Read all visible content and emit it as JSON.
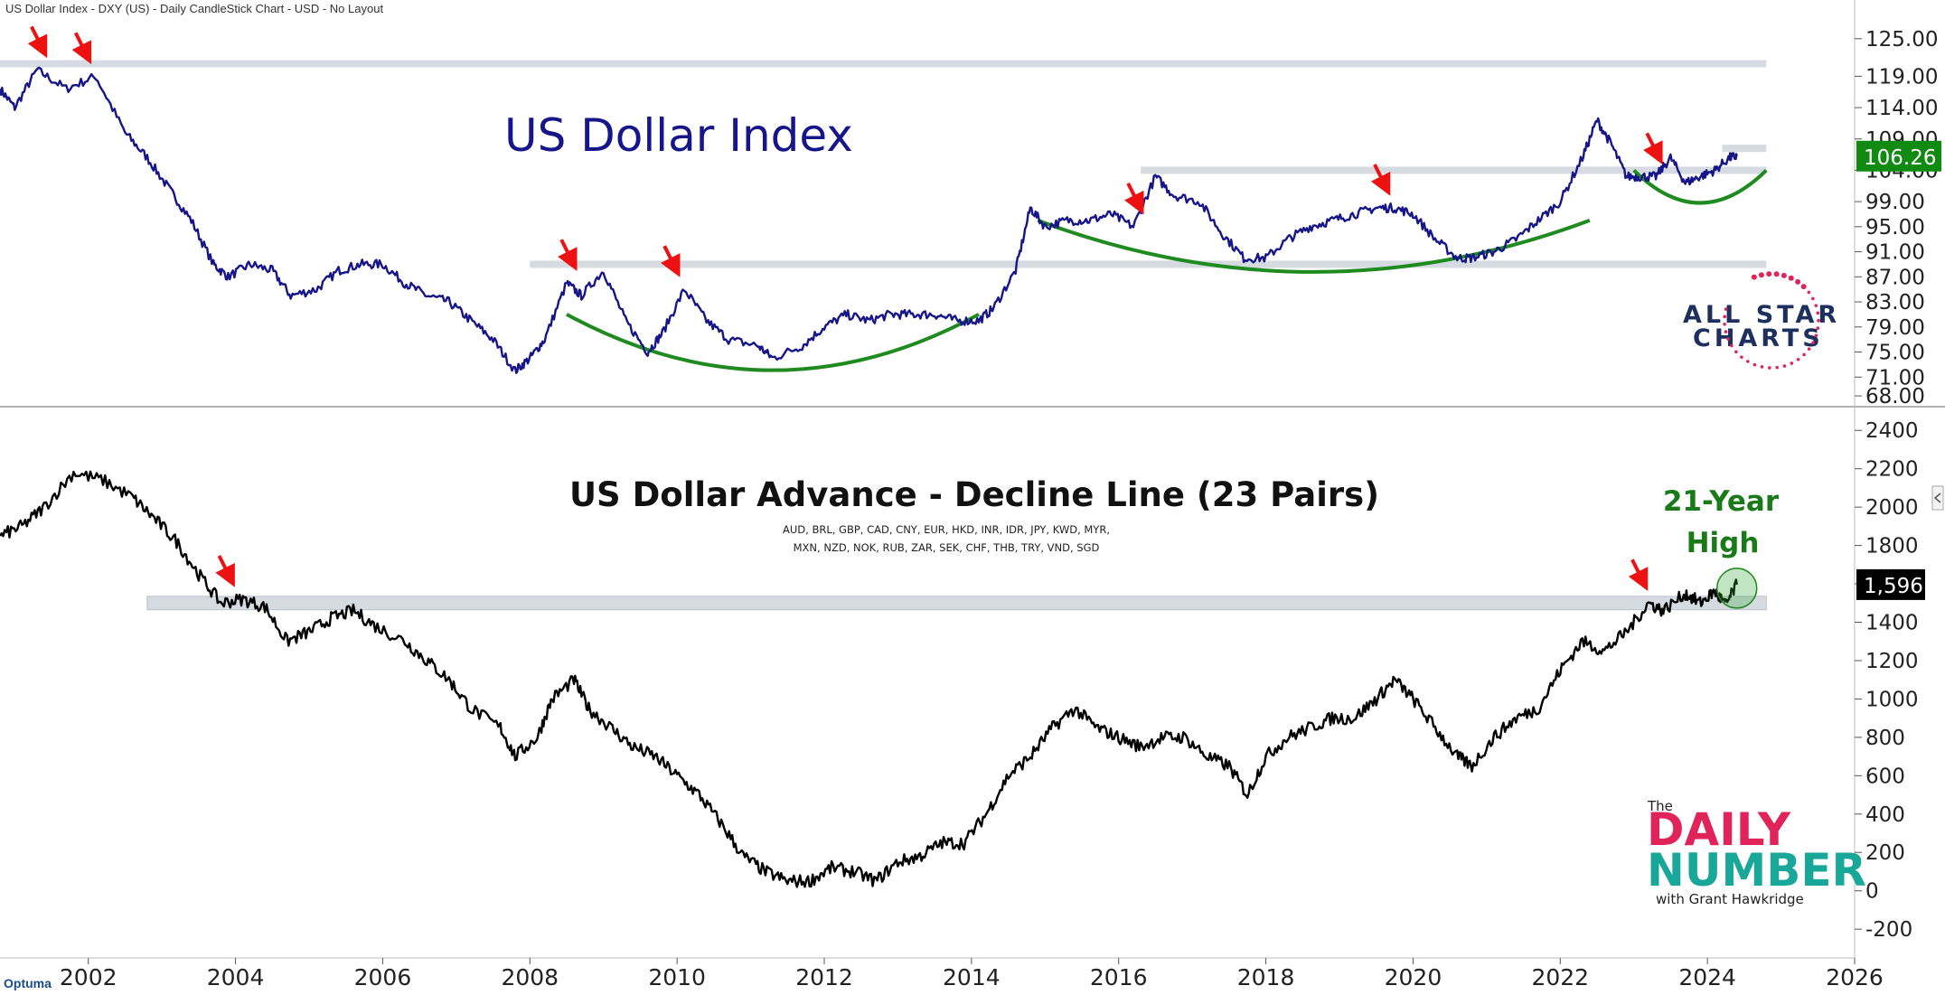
{
  "header": {
    "text": "US Dollar Index - DXY (US) - Daily CandleStick Chart - USD - No Layout"
  },
  "footer": {
    "brand": "Optuma"
  },
  "colors": {
    "index_line": "#16168a",
    "ad_line": "#000000",
    "arc": "#1f8a1f",
    "arrow": "#ee1111",
    "band": "#d5dbe1",
    "last_index_bg": "#108a10",
    "last_ad_bg": "#000000"
  },
  "chart_data": [
    {
      "type": "line",
      "panel": "top",
      "title": "US Dollar Index",
      "ylim": [
        67,
        128
      ],
      "y_ticks": [
        {
          "label": "125.00",
          "value": 125
        },
        {
          "label": "119.00",
          "value": 119
        },
        {
          "label": "114.00",
          "value": 114
        },
        {
          "label": "109.00",
          "value": 109
        },
        {
          "label": "104.00",
          "value": 104
        },
        {
          "label": "99.00",
          "value": 99
        },
        {
          "label": "95.00",
          "value": 95
        },
        {
          "label": "91.00",
          "value": 91
        },
        {
          "label": "87.00",
          "value": 87
        },
        {
          "label": "83.00",
          "value": 83
        },
        {
          "label": "79.00",
          "value": 79
        },
        {
          "label": "75.00",
          "value": 75
        },
        {
          "label": "71.00",
          "value": 71
        },
        {
          "label": "68.00",
          "value": 68
        }
      ],
      "last_value": 106.26,
      "last_value_label": "106.26",
      "resistance_levels": [
        121,
        107.5,
        104,
        89
      ],
      "series": [
        {
          "x": [
            2001.0,
            2001.2,
            2001.5,
            2001.9,
            2002.3,
            2002.7,
            2003.0,
            2003.3,
            2003.6,
            2003.9,
            2004.1,
            2004.4,
            2004.7,
            2004.95,
            2005.3,
            2005.6,
            2005.9,
            2006.2,
            2006.5,
            2006.8,
            2007.1,
            2007.4,
            2007.7,
            2008.0,
            2008.2,
            2008.4,
            2008.7,
            2008.9,
            2009.2,
            2009.5,
            2009.8,
            2010.0,
            2010.3,
            2010.6,
            2010.9,
            2011.3,
            2011.5,
            2011.9,
            2012.2,
            2012.5,
            2012.8,
            2013.1,
            2013.4,
            2013.7,
            2014.0,
            2014.3,
            2014.5,
            2014.8,
            2015.0,
            2015.2,
            2015.5,
            2015.8,
            2016.1,
            2016.4,
            2016.7,
            2016.95,
            2017.3,
            2017.6,
            2017.9,
            2018.2,
            2018.5,
            2018.8,
            2019.1,
            2019.4,
            2019.7,
            2019.95,
            2020.2,
            2020.5,
            2020.8,
            2021.0,
            2021.3,
            2021.6,
            2021.9,
            2022.2,
            2022.5,
            2022.7,
            2022.9,
            2023.1,
            2023.3,
            2023.5,
            2023.7,
            2023.9,
            2024.1,
            2024.3,
            2024.5,
            2024.6
          ],
          "y": [
            117,
            114,
            120,
            117,
            119,
            110,
            106,
            101,
            96,
            89,
            87,
            89,
            88,
            84,
            85,
            88,
            89,
            89,
            86,
            84,
            83,
            80,
            77,
            72,
            74,
            77,
            86,
            84,
            88,
            80,
            75,
            78,
            85,
            80,
            77,
            76,
            74,
            76,
            79,
            81,
            80,
            81,
            81,
            81,
            80,
            80,
            82,
            88,
            98,
            95,
            96,
            96,
            97,
            95,
            103,
            100,
            99,
            94,
            90,
            90,
            93,
            95,
            96,
            97,
            98,
            98,
            97,
            93,
            90,
            90,
            91,
            93,
            96,
            99,
            106,
            112,
            108,
            103,
            103,
            103,
            106,
            102,
            103,
            104,
            106,
            106.26
          ]
        }
      ],
      "annotations_arrows": [
        2001.6,
        2002.2,
        2008.8,
        2010.2,
        2016.5,
        2019.85,
        2023.55
      ]
    },
    {
      "type": "line",
      "panel": "bottom",
      "title": "US Dollar Advance - Decline Line (23 Pairs)",
      "subtitle_lines": [
        "AUD, BRL, GBP, CAD, CNY, EUR, HKD, INR, IDR, JPY, KWD, MYR,",
        "MXN, NZD, NOK, RUB, ZAR, SEK, CHF, THB, TRY, VND, SGD"
      ],
      "annotation": [
        "21-Year",
        "High"
      ],
      "ylim": [
        -350,
        2500
      ],
      "y_ticks": [
        2400,
        2200,
        2000,
        1800,
        1600,
        1400,
        1200,
        1000,
        800,
        600,
        400,
        200,
        0,
        -200
      ],
      "last_value": 1596,
      "last_value_label": "1,596",
      "band": [
        1465,
        1535
      ],
      "series": [
        {
          "x": [
            2001.0,
            2001.3,
            2001.6,
            2002.0,
            2002.4,
            2002.8,
            2003.1,
            2003.4,
            2003.7,
            2004.0,
            2004.3,
            2004.6,
            2004.9,
            2005.2,
            2005.5,
            2005.8,
            2006.1,
            2006.5,
            2006.8,
            2007.1,
            2007.4,
            2007.8,
            2008.0,
            2008.3,
            2008.5,
            2008.8,
            2009.0,
            2009.3,
            2009.6,
            2009.9,
            2010.2,
            2010.5,
            2010.8,
            2011.1,
            2011.4,
            2011.7,
            2012.0,
            2012.3,
            2012.6,
            2012.9,
            2013.2,
            2013.5,
            2013.8,
            2014.1,
            2014.4,
            2014.7,
            2015.0,
            2015.3,
            2015.6,
            2015.9,
            2016.2,
            2016.5,
            2016.8,
            2017.1,
            2017.4,
            2017.7,
            2017.95,
            2018.2,
            2018.5,
            2018.8,
            2019.1,
            2019.4,
            2019.7,
            2019.95,
            2020.2,
            2020.5,
            2020.8,
            2021.0,
            2021.3,
            2021.6,
            2021.9,
            2022.2,
            2022.5,
            2022.8,
            2023.1,
            2023.4,
            2023.6,
            2023.9,
            2024.1,
            2024.3,
            2024.45,
            2024.6
          ],
          "y": [
            1850,
            1900,
            2000,
            2180,
            2140,
            2050,
            1940,
            1820,
            1650,
            1500,
            1520,
            1480,
            1300,
            1350,
            1420,
            1460,
            1380,
            1300,
            1200,
            1100,
            950,
            850,
            700,
            800,
            1000,
            1100,
            950,
            850,
            750,
            700,
            600,
            500,
            350,
            180,
            100,
            50,
            50,
            120,
            100,
            50,
            150,
            180,
            250,
            250,
            400,
            600,
            700,
            850,
            950,
            850,
            800,
            750,
            800,
            800,
            700,
            650,
            500,
            700,
            800,
            850,
            900,
            900,
            1000,
            1100,
            1000,
            850,
            700,
            650,
            800,
            900,
            950,
            1150,
            1300,
            1250,
            1350,
            1500,
            1460,
            1550,
            1500,
            1560,
            1490,
            1596
          ]
        }
      ],
      "annotations_arrows": [
        2004.15,
        2023.35
      ]
    }
  ],
  "x_axis": {
    "range": [
      2001.0,
      2026.2
    ],
    "ticks": [
      {
        "label": "2002",
        "value": 2002.2
      },
      {
        "label": "2004",
        "value": 2004.2
      },
      {
        "label": "2006",
        "value": 2006.2
      },
      {
        "label": "2008",
        "value": 2008.2
      },
      {
        "label": "2010",
        "value": 2010.2
      },
      {
        "label": "2012",
        "value": 2012.2
      },
      {
        "label": "2014",
        "value": 2014.2
      },
      {
        "label": "2016",
        "value": 2016.2
      },
      {
        "label": "2018",
        "value": 2018.2
      },
      {
        "label": "2020",
        "value": 2020.2
      },
      {
        "label": "2022",
        "value": 2022.2
      },
      {
        "label": "2024",
        "value": 2024.2
      },
      {
        "label": "2026",
        "value": 2026.2
      }
    ]
  },
  "logos": {
    "all_star": [
      "ALL STAR",
      "CHARTS"
    ],
    "daily_number": {
      "the": "The",
      "daily": "DAILY",
      "number": "NUMBER",
      "byline": "with Grant Hawkridge"
    }
  }
}
